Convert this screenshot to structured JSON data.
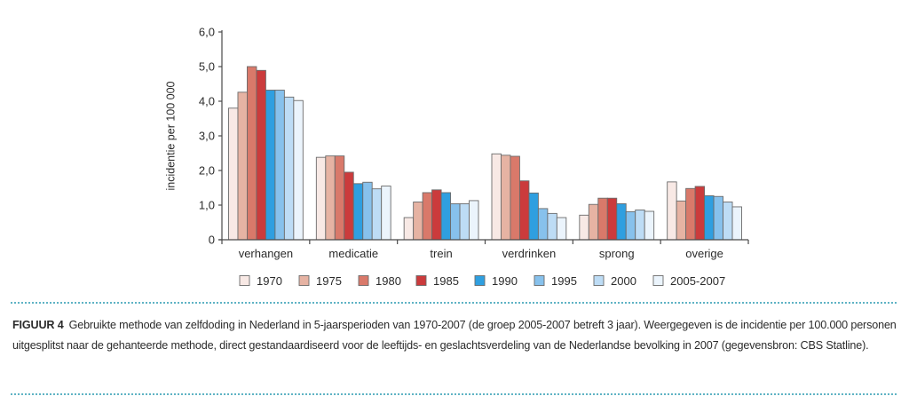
{
  "chart_data": {
    "type": "bar",
    "title": "",
    "xlabel": "",
    "ylabel": "incidentie per 100 000",
    "ylim": [
      0,
      6
    ],
    "yticks": [
      "0",
      "1,0",
      "2,0",
      "3,0",
      "4,0",
      "5,0",
      "6,0"
    ],
    "ytick_values": [
      0,
      1,
      2,
      3,
      4,
      5,
      6
    ],
    "grid": false,
    "legend_position": "bottom",
    "categories": [
      "verhangen",
      "medicatie",
      "trein",
      "verdrinken",
      "sprong",
      "overige"
    ],
    "series": [
      {
        "name": "1970",
        "color": "#f8e9e5",
        "values": [
          3.8,
          2.38,
          0.64,
          2.48,
          0.71,
          1.67
        ]
      },
      {
        "name": "1975",
        "color": "#e6b3a3",
        "values": [
          4.26,
          2.42,
          1.09,
          2.44,
          1.02,
          1.12
        ]
      },
      {
        "name": "1980",
        "color": "#d9796a",
        "values": [
          5.0,
          2.42,
          1.36,
          2.41,
          1.2,
          1.48
        ]
      },
      {
        "name": "1985",
        "color": "#cb3b3c",
        "values": [
          4.89,
          1.95,
          1.44,
          1.7,
          1.2,
          1.54
        ]
      },
      {
        "name": "1990",
        "color": "#2f9fe0",
        "values": [
          4.32,
          1.62,
          1.36,
          1.35,
          1.04,
          1.27
        ]
      },
      {
        "name": "1995",
        "color": "#87c1ec",
        "values": [
          4.32,
          1.66,
          1.04,
          0.9,
          0.81,
          1.25
        ]
      },
      {
        "name": "2000",
        "color": "#bddcf5",
        "values": [
          4.12,
          1.47,
          1.04,
          0.76,
          0.86,
          1.09
        ]
      },
      {
        "name": "2005-2007",
        "color": "#ebf4fc",
        "values": [
          4.02,
          1.55,
          1.13,
          0.64,
          0.82,
          0.95
        ]
      }
    ]
  },
  "caption": {
    "figure_label": "FIGUUR 4",
    "text": "Gebruikte methode van zelfdoding in Nederland in 5-jaarsperioden van 1970-2007 (de groep 2005-2007 betreft 3 jaar). Weergegeven is de incidentie per 100.000 personen uitgesplitst naar de gehanteerde methode, direct gestandaardiseerd voor de leeftijds- en geslachtsverdeling van de Nederlandse bevolking in 2007 (gegevensbron: CBS Statline)."
  },
  "colors": {
    "rule": "#5fb3c4",
    "axis": "#4a4a4a",
    "bar_outline": "#6b6b6b"
  }
}
